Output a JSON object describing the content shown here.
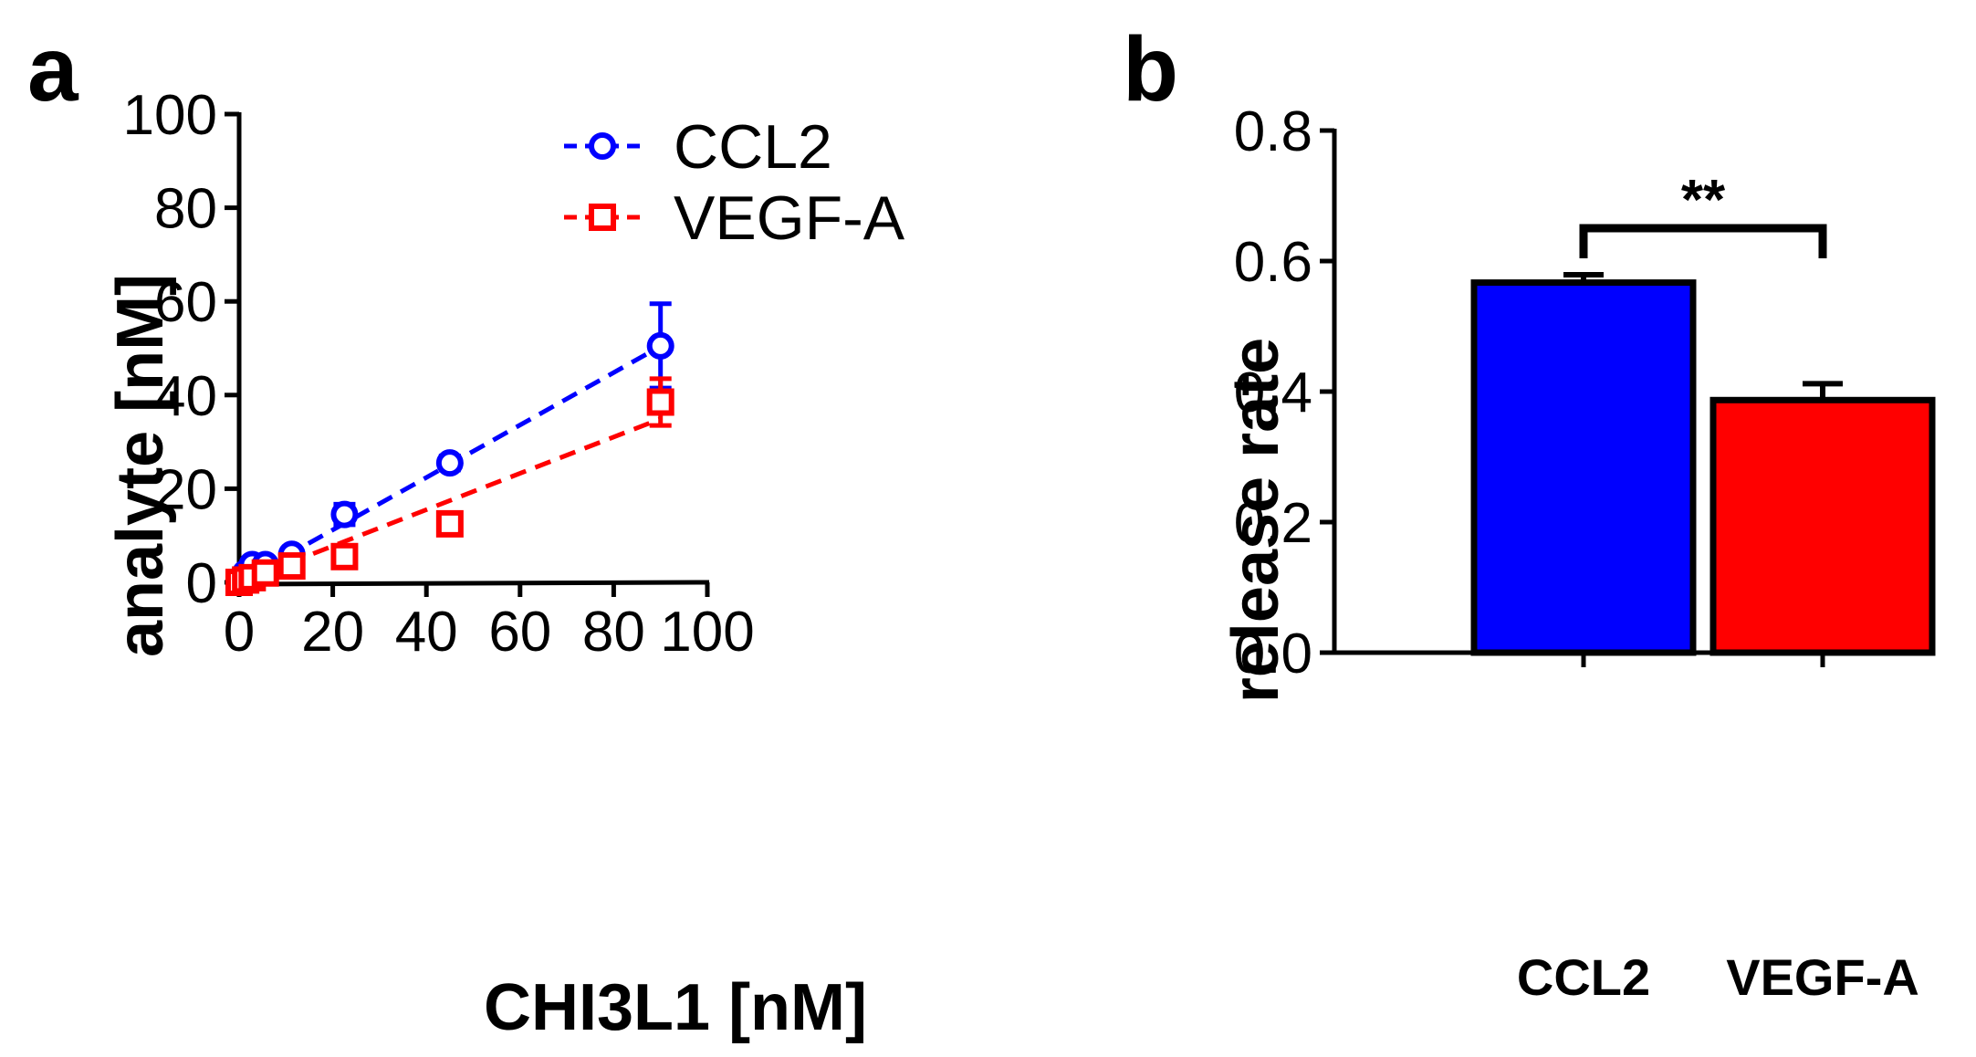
{
  "panels": {
    "a": "a",
    "b": "b"
  },
  "chart_data": [
    {
      "type": "scatter",
      "panel": "a",
      "title": "",
      "xlabel": "CHI3L1 [nM]",
      "ylabel": "analyte [nM]",
      "xlim": [
        0,
        100
      ],
      "ylim": [
        0,
        100
      ],
      "xticks": [
        "0",
        "20",
        "40",
        "60",
        "80",
        "100"
      ],
      "yticks": [
        "0",
        "20",
        "40",
        "60",
        "80",
        "100"
      ],
      "grid": false,
      "legend_position": "top-right",
      "series": [
        {
          "name": "CCL2",
          "color": "#0000ff",
          "marker": "circle",
          "x": [
            0,
            1.4,
            2.8,
            5.6,
            11.25,
            22.5,
            45,
            90
          ],
          "y": [
            0.5,
            2,
            3.8,
            3.8,
            6,
            14.5,
            25.5,
            50.5
          ],
          "err": [
            0.8,
            0.8,
            1,
            0.8,
            1.2,
            2.2,
            1.5,
            9
          ],
          "fit": [
            0,
            0.56
          ]
        },
        {
          "name": "VEGF-A",
          "color": "#ff0000",
          "marker": "square",
          "x": [
            0,
            1.4,
            2.8,
            5.6,
            11.25,
            22.5,
            45,
            90
          ],
          "y": [
            0,
            0.5,
            1,
            2,
            3.5,
            5.5,
            12.5,
            38.5
          ],
          "err": [
            0.5,
            0.5,
            0.5,
            0.8,
            0.8,
            0.8,
            0.8,
            5
          ],
          "fit": [
            0,
            0.388
          ]
        }
      ]
    },
    {
      "type": "bar",
      "panel": "b",
      "title": "",
      "xlabel": "",
      "ylabel": "release rate",
      "ylim": [
        0,
        0.8
      ],
      "yticks": [
        "0.0",
        "0.2",
        "0.4",
        "0.6",
        "0.8"
      ],
      "categories": [
        "CCL2",
        "VEGF-A"
      ],
      "values": [
        0.567,
        0.387
      ],
      "errors": [
        0.012,
        0.025
      ],
      "colors": [
        "#0000ff",
        "#ff0000"
      ],
      "annotation": "**"
    }
  ]
}
